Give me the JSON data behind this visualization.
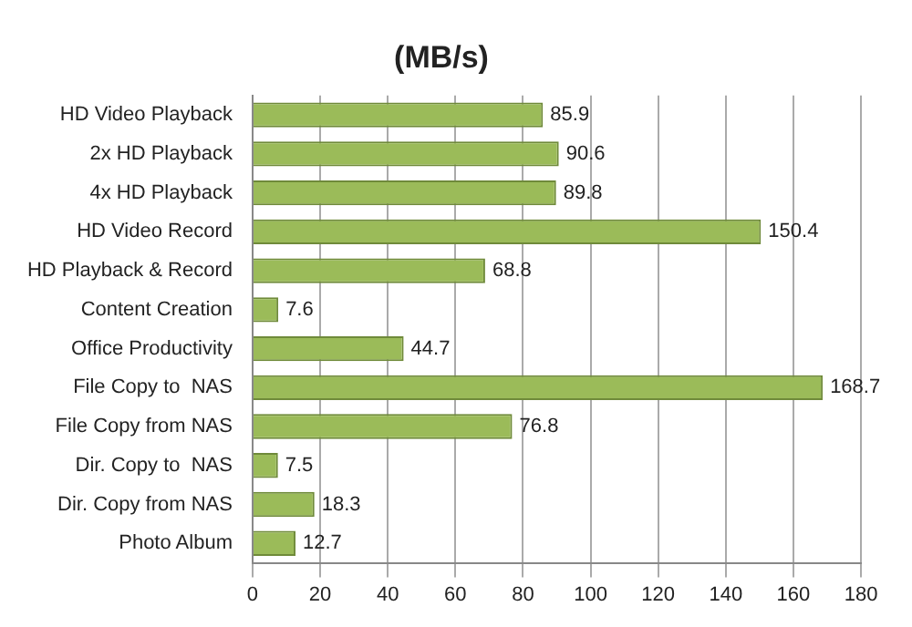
{
  "chart_data": {
    "type": "bar",
    "orientation": "horizontal",
    "title": "(MB/s)",
    "categories": [
      "HD Video Playback",
      "2x HD Playback",
      "4x HD Playback",
      "HD Video Record",
      "HD Playback & Record",
      "Content Creation",
      "Office Productivity",
      "File Copy to  NAS",
      "File Copy from NAS",
      "Dir. Copy to  NAS",
      "Dir. Copy from NAS",
      "Photo Album"
    ],
    "values": [
      85.9,
      90.6,
      89.8,
      150.4,
      68.8,
      7.6,
      44.7,
      168.7,
      76.8,
      7.5,
      18.3,
      12.7
    ],
    "color": "#9bbb59",
    "xlim": [
      0,
      180
    ],
    "xticks": [
      0,
      20,
      40,
      60,
      80,
      100,
      120,
      140,
      160,
      180
    ],
    "grid": "x",
    "data_labels": true,
    "legend": false
  }
}
